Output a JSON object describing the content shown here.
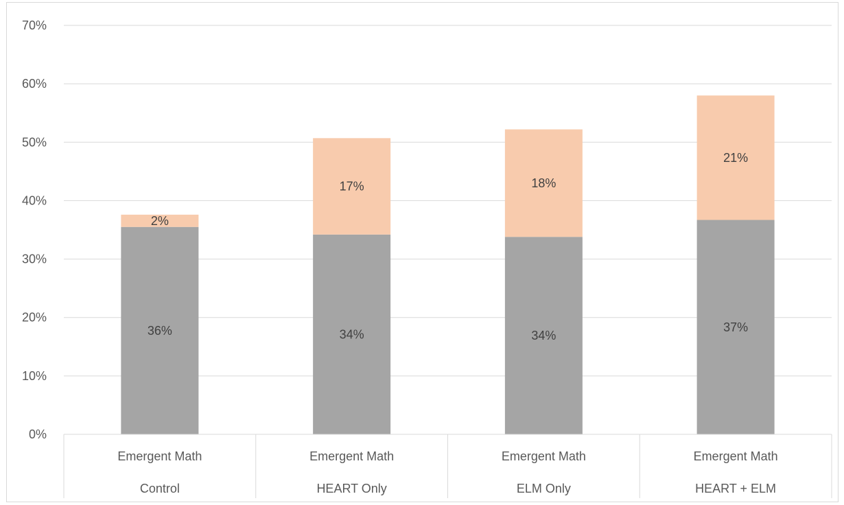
{
  "chart_data": {
    "type": "bar",
    "stacked": true,
    "title": "",
    "xlabel": "",
    "ylabel": "",
    "ylim": [
      0,
      0.7
    ],
    "yticks": [
      "0%",
      "10%",
      "20%",
      "30%",
      "40%",
      "50%",
      "60%",
      "70%"
    ],
    "grid": true,
    "legend": "none",
    "categories": [
      {
        "group": "Emergent Math",
        "label": "Control"
      },
      {
        "group": "Emergent Math",
        "label": "HEART Only"
      },
      {
        "group": "Emergent Math",
        "label": "ELM Only"
      },
      {
        "group": "Emergent Math",
        "label": "HEART + ELM"
      }
    ],
    "series": [
      {
        "color": "#a5a5a5",
        "values": [
          0.355,
          0.342,
          0.338,
          0.367
        ],
        "labels": [
          "36%",
          "34%",
          "34%",
          "37%"
        ]
      },
      {
        "color": "#f8cbad",
        "values": [
          0.021,
          0.165,
          0.184,
          0.213
        ],
        "labels": [
          "2%",
          "17%",
          "18%",
          "21%"
        ]
      }
    ],
    "gridline_color": "#d9d9d9",
    "axis_text_color": "#595959"
  }
}
